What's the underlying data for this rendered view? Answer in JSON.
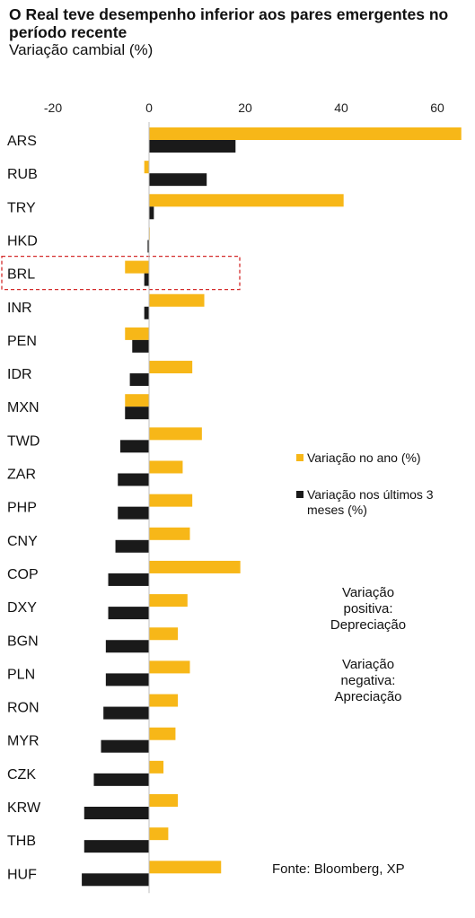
{
  "title": "O Real teve desempenho inferior aos pares emergentes no período recente",
  "subtitle": "Variação cambial (%)",
  "legend": {
    "items": [
      {
        "label": "Variação no ano (%)",
        "color": "#F7B718"
      },
      {
        "label": "Variação nos últimos 3 meses (%)",
        "color": "#1A1A1A"
      }
    ]
  },
  "notes": {
    "positive": "Variação\npositiva:\nDepreciação",
    "negative": "Variação\nnegativa:\nApreciação"
  },
  "source": "Fonte: Bloomberg, XP",
  "highlight": "BRL",
  "chart_data": {
    "type": "bar",
    "orientation": "horizontal",
    "xlim": [
      -20,
      65
    ],
    "xticks": [
      "-20",
      "0",
      "20",
      "40",
      "60"
    ],
    "categories": [
      "ARS",
      "RUB",
      "TRY",
      "HKD",
      "BRL",
      "INR",
      "PEN",
      "IDR",
      "MXN",
      "TWD",
      "ZAR",
      "PHP",
      "CNY",
      "COP",
      "DXY",
      "BGN",
      "PLN",
      "RON",
      "MYR",
      "CZK",
      "KRW",
      "THB",
      "HUF"
    ],
    "series": [
      {
        "name": "Variação no ano (%)",
        "color": "#F7B718",
        "values": [
          65,
          -1,
          40.5,
          0,
          -5,
          11.5,
          -5,
          9,
          -5,
          11,
          7,
          9,
          8.5,
          19,
          8,
          6,
          8.5,
          6,
          5.5,
          3,
          6,
          4,
          15
        ]
      },
      {
        "name": "Variação nos últimos 3 meses (%)",
        "color": "#1A1A1A",
        "values": [
          18,
          12,
          1,
          -0.3,
          -1,
          -1,
          -3.5,
          -4,
          -5,
          -6,
          -6.5,
          -6.5,
          -7,
          -8.5,
          -8.5,
          -9,
          -9,
          -9.5,
          -10,
          -11.5,
          -13.5,
          -13.5,
          -14
        ]
      }
    ]
  }
}
